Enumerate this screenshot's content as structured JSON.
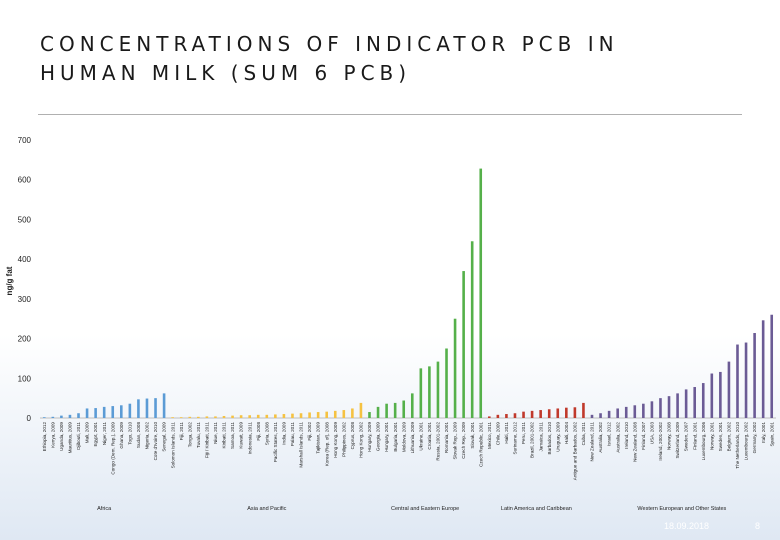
{
  "slide": {
    "title_line1": "CONCENTRATIONS OF INDICATOR PCB IN",
    "title_line2": "HUMAN MILK (SUM 6 PCB)",
    "date": "18.09.2018",
    "page": "8"
  },
  "chart_data": {
    "type": "bar",
    "title": "CONCENTRATIONS OF INDICATOR PCB IN HUMAN MILK (SUM 6 PCB)",
    "ylabel": "ng/g fat",
    "xlabel": "",
    "ylim": [
      0,
      700
    ],
    "yticks": [
      0,
      100,
      200,
      300,
      400,
      500,
      600,
      700
    ],
    "grid": false,
    "groups": [
      {
        "name": "Africa",
        "color": "#5b9bd5",
        "categories": [
          "Ethiopia, 2012",
          "Kenya, 2009",
          "Uganda, 2009",
          "Mauritius, 2009",
          "Djibouti, 2011",
          "Mali, 2009",
          "Egypt, 2001",
          "Niger, 2011",
          "Congo (Dem. Rep.), 2009",
          "Ghana, 2009",
          "Togo, 2010",
          "Sudan, 2008",
          "Nigeria, 2002",
          "Cote d'Ivoire, 2010",
          "Senegal, 2009"
        ],
        "values": [
          2,
          3,
          6,
          8,
          12,
          24,
          25,
          28,
          30,
          32,
          36,
          47,
          49,
          50,
          62
        ]
      },
      {
        "name": "Asia and Pacific",
        "color": "#f5c242",
        "categories": [
          "Solomon Islands, 2011",
          "Fiji, 2011",
          "Tonga, 2002",
          "Tuvalu, 2011",
          "Fiji / Kiribati, 2011",
          "Niue, 2011",
          "Kiribati, 2011",
          "Samoa, 2011",
          "Kuwait, 2009",
          "Indonesia, 2011",
          "Fiji, 2008",
          "Syria, 2008",
          "Pacific States, 2011",
          "India, 2009",
          "Palau, 2011",
          "Marshall Islands, 2011",
          "Fiji, 2002",
          "Tajikistan, 2009",
          "Korea (Rep. of), 2008",
          "Hong Kong, 2009",
          "Philippines, 2002",
          "Cyprus, 2008",
          "Hong Kong, 2002"
        ],
        "values": [
          2,
          2,
          3,
          3,
          4,
          4,
          5,
          6,
          7,
          7,
          8,
          8,
          9,
          10,
          11,
          12,
          14,
          15,
          16,
          18,
          20,
          24,
          38
        ]
      },
      {
        "name": "Central and Eastern Europe",
        "color": "#55b04a",
        "categories": [
          "Hungary, 2009",
          "Georgia, 2009",
          "Hungary, 2001",
          "Bulgaria, 2001",
          "Moldova, 2009",
          "Lithuania, 2009",
          "Ukraine, 2001",
          "Croatia, 2001",
          "Russia, 2001-2002",
          "Romania, 2001",
          "Slovak Rep., 2009",
          "Czech Rep., 2009",
          "Slovak, 2001",
          "Czech Republic, 2001"
        ],
        "values": [
          15,
          28,
          36,
          38,
          44,
          62,
          125,
          130,
          142,
          175,
          250,
          370,
          445,
          628
        ]
      },
      {
        "name": "Latin America and Caribbean",
        "color": "#c0392b",
        "categories": [
          "Mexico, 2011",
          "Chile, 2009",
          "Haiti, 2011",
          "Suriname, 2012",
          "Peru, 2011",
          "Brazil, 2001-2002",
          "Jamaica, 2011",
          "Barbados, 2010",
          "Uruguay, 2009",
          "Haiti, 2004",
          "Antigue and Barbados, 2002",
          "Cuba, 2011"
        ],
        "values": [
          4,
          8,
          10,
          12,
          16,
          18,
          20,
          22,
          24,
          26,
          27,
          38
        ]
      },
      {
        "name": "Western European and Other States",
        "color": "#6b5b95",
        "categories": [
          "New Zealand, 2011",
          "Australia, 2002",
          "Israel, 2012",
          "Australia, 2002",
          "Ireland, 2010",
          "New Zealand, 2008",
          "Finland, 2007",
          "USA, 2003",
          "Ireland, 2001-2002",
          "Norway, 2008",
          "Switzerland, 2009",
          "Sweden, 2007",
          "Finland, 2001",
          "Luxembourg, 2006",
          "Norway, 2001",
          "Sweden, 2001",
          "Belgium, 2002",
          "The Netherlands, 2010",
          "Luxembourg, 2002",
          "Germany, 2002",
          "Italy, 2001",
          "Spain, 2001"
        ],
        "values": [
          8,
          12,
          18,
          24,
          28,
          32,
          36,
          42,
          50,
          55,
          62,
          72,
          78,
          88,
          112,
          116,
          142,
          185,
          190,
          214,
          246,
          260
        ]
      }
    ]
  }
}
